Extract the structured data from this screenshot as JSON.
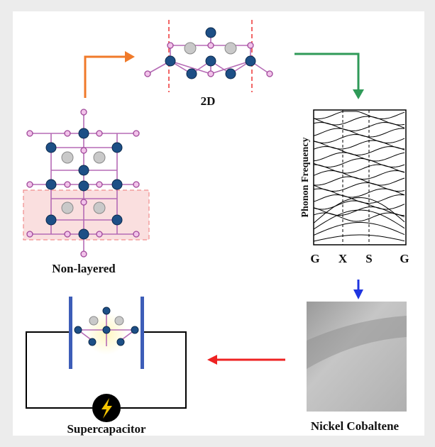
{
  "labels": {
    "two_d": "2D",
    "non_layered": "Non-layered",
    "y_axis": "Phonon Frequency",
    "k_points": [
      "G",
      "X",
      "S",
      "G"
    ],
    "material": "Nickel Cobaltene",
    "device": "Supercapacitor"
  }
}
